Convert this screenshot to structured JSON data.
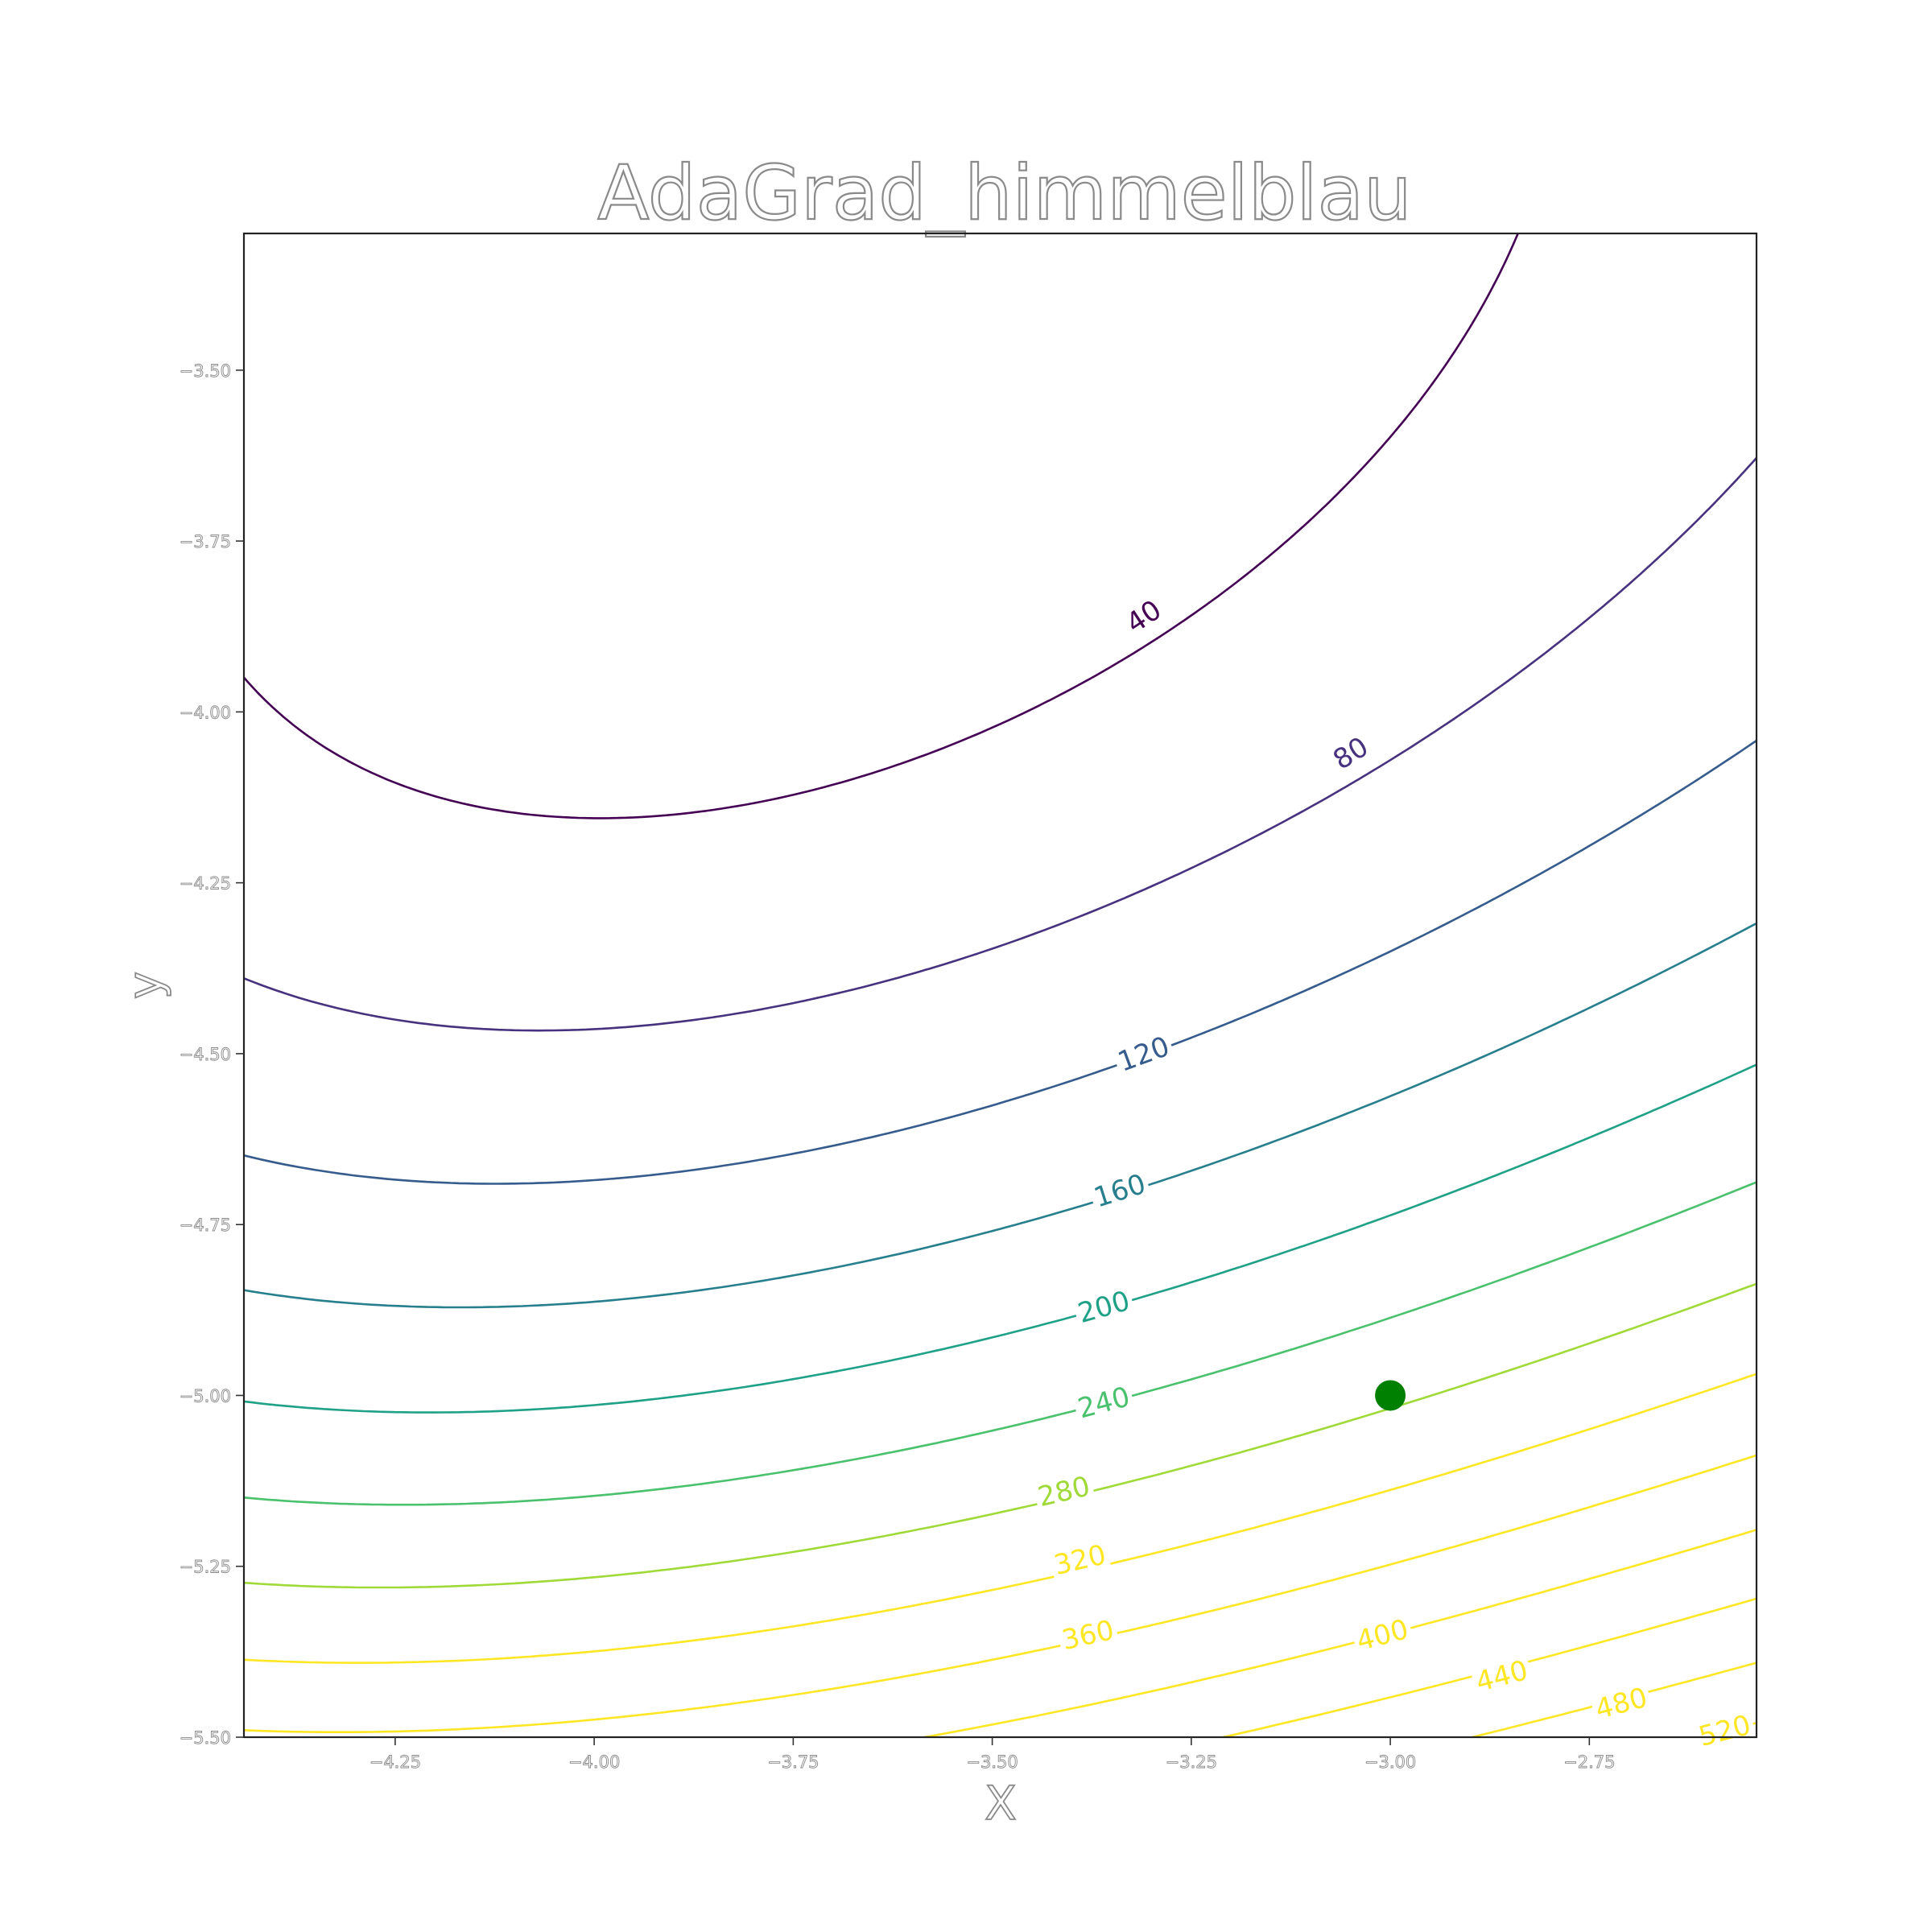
{
  "chart_data": {
    "type": "contour",
    "title": "AdaGrad_himmelblau",
    "xlabel": "X",
    "ylabel": "y",
    "function": "himmelblau",
    "xlim": [
      -4.44,
      -2.54
    ],
    "ylim": [
      -5.5,
      -3.3
    ],
    "x_ticks": [
      {
        "value": -4.25,
        "label": "−4.25"
      },
      {
        "value": -4.0,
        "label": "−4.00"
      },
      {
        "value": -3.75,
        "label": "−3.75"
      },
      {
        "value": -3.5,
        "label": "−3.50"
      },
      {
        "value": -3.25,
        "label": "−3.25"
      },
      {
        "value": -3.0,
        "label": "−3.00"
      },
      {
        "value": -2.75,
        "label": "−2.75"
      }
    ],
    "y_ticks": [
      {
        "value": -3.5,
        "label": "−3.50"
      },
      {
        "value": -3.75,
        "label": "−3.75"
      },
      {
        "value": -4.0,
        "label": "−4.00"
      },
      {
        "value": -4.25,
        "label": "−4.25"
      },
      {
        "value": -4.5,
        "label": "−4.50"
      },
      {
        "value": -4.75,
        "label": "−4.75"
      },
      {
        "value": -5.0,
        "label": "−5.00"
      },
      {
        "value": -5.25,
        "label": "−5.25"
      },
      {
        "value": -5.5,
        "label": "−5.50"
      }
    ],
    "levels": [
      {
        "value": 40,
        "label": "40",
        "color": "#440154",
        "label_at": {
          "x": -3.31,
          "y": -3.86
        }
      },
      {
        "value": 80,
        "label": "80",
        "color": "#46327e",
        "label_at": {
          "x": -3.05,
          "y": -4.06
        }
      },
      {
        "value": 120,
        "label": "120",
        "color": "#365c8d",
        "label_at": {
          "x": -3.31,
          "y": -4.5
        }
      },
      {
        "value": 160,
        "label": "160",
        "color": "#277f8e",
        "label_at": {
          "x": -3.34,
          "y": -4.7
        }
      },
      {
        "value": 200,
        "label": "200",
        "color": "#1fa187",
        "label_at": {
          "x": -3.36,
          "y": -4.87
        }
      },
      {
        "value": 240,
        "label": "240",
        "color": "#4ac16d",
        "label_at": {
          "x": -3.36,
          "y": -5.01
        }
      },
      {
        "value": 280,
        "label": "280",
        "color": "#a0da39",
        "label_at": {
          "x": -3.41,
          "y": -5.14
        }
      },
      {
        "value": 320,
        "label": "320",
        "color": "#fde725",
        "label_at": {
          "x": -3.39,
          "y": -5.24
        }
      },
      {
        "value": 360,
        "label": "360",
        "color": "#fde725",
        "label_at": {
          "x": -3.38,
          "y": -5.35
        }
      },
      {
        "value": 400,
        "label": "400",
        "color": "#fde725",
        "label_at": {
          "x": -3.01,
          "y": -5.35
        }
      },
      {
        "value": 440,
        "label": "440",
        "color": "#fde725",
        "label_at": {
          "x": -2.86,
          "y": -5.41
        }
      },
      {
        "value": 480,
        "label": "480",
        "color": "#fde725",
        "label_at": {
          "x": -2.71,
          "y": -5.45
        }
      },
      {
        "value": 520,
        "label": "520",
        "color": "#fde725",
        "label_at": {
          "x": -2.58,
          "y": -5.49
        }
      }
    ],
    "marker": {
      "x": -3.0,
      "y": -5.0,
      "color": "#008000"
    },
    "grid": false,
    "legend": "none"
  }
}
